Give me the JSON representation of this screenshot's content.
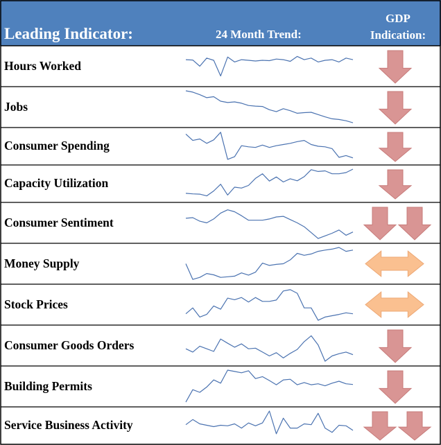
{
  "header": {
    "title": "Leading Indicator:",
    "trend": "24 Month Trend:",
    "gdp_line1": "GDP",
    "gdp_line2": "Indication:",
    "background": "#4f81bd"
  },
  "colors": {
    "sparkline": "#4a72b0",
    "arrow_down_fill": "#d99594",
    "arrow_down_stroke": "#c77b7a",
    "arrow_neutral_fill": "#fac090",
    "arrow_neutral_stroke": "#eda875"
  },
  "chart_data": {
    "type": "table",
    "title": "Leading Indicator / 24 Month Trend / GDP Indication",
    "columns": [
      "Leading Indicator:",
      "24 Month Trend:",
      "GDP Indication:"
    ],
    "rows": [
      {
        "indicator": "Hours Worked",
        "signal": "down",
        "arrows": 1,
        "trend": [
          70,
          69,
          50,
          75,
          68,
          20,
          78,
          63,
          70,
          68,
          66,
          68,
          67,
          72,
          70,
          65,
          80,
          70,
          75,
          63,
          68,
          70,
          63,
          75,
          70
        ]
      },
      {
        "indicator": "Jobs",
        "signal": "down",
        "arrows": 1,
        "trend": [
          100,
          96,
          88,
          79,
          82,
          68,
          64,
          66,
          62,
          55,
          53,
          52,
          42,
          36,
          45,
          39,
          31,
          33,
          34,
          27,
          20,
          14,
          12,
          8,
          2
        ]
      },
      {
        "indicator": "Consumer Spending",
        "signal": "down",
        "arrows": 1,
        "trend": [
          92,
          70,
          75,
          60,
          72,
          98,
          5,
          14,
          52,
          48,
          46,
          54,
          46,
          52,
          56,
          60,
          66,
          70,
          56,
          50,
          48,
          42,
          12,
          18,
          10
        ]
      },
      {
        "indicator": "Capacity Utilization",
        "signal": "down",
        "arrows": 1,
        "trend": [
          17,
          15,
          14,
          8,
          25,
          48,
          11,
          38,
          35,
          44,
          68,
          84,
          59,
          73,
          56,
          67,
          60,
          74,
          98,
          92,
          94,
          84,
          84,
          88,
          100
        ]
      },
      {
        "indicator": "Consumer Sentiment",
        "signal": "down",
        "arrows": 2,
        "trend": [
          64,
          66,
          55,
          50,
          62,
          80,
          90,
          84,
          72,
          58,
          58,
          58,
          62,
          68,
          70,
          60,
          50,
          38,
          20,
          2,
          10,
          18,
          28,
          12,
          22
        ]
      },
      {
        "indicator": "Money Supply",
        "signal": "neutral",
        "arrows": 1,
        "trend": [
          50,
          2,
          8,
          20,
          16,
          8,
          10,
          12,
          22,
          15,
          24,
          52,
          45,
          48,
          50,
          62,
          82,
          76,
          80,
          88,
          92,
          95,
          100,
          88,
          92
        ]
      },
      {
        "indicator": "Stock Prices",
        "signal": "neutral",
        "arrows": 1,
        "trend": [
          22,
          40,
          12,
          20,
          46,
          36,
          70,
          65,
          72,
          58,
          72,
          60,
          60,
          64,
          92,
          96,
          85,
          40,
          40,
          2,
          12,
          16,
          20,
          25,
          22
        ]
      },
      {
        "indicator": "Consumer Goods Orders",
        "signal": "down",
        "arrows": 1,
        "trend": [
          40,
          30,
          48,
          40,
          32,
          70,
          57,
          45,
          55,
          40,
          42,
          30,
          18,
          28,
          12,
          26,
          38,
          62,
          80,
          52,
          2,
          18,
          25,
          30,
          22
        ]
      },
      {
        "indicator": "Building Permits",
        "signal": "down",
        "arrows": 1,
        "trend": [
          2,
          40,
          32,
          48,
          70,
          60,
          100,
          96,
          92,
          98,
          74,
          80,
          68,
          55,
          70,
          72,
          55,
          62,
          55,
          58,
          52,
          60,
          66,
          58,
          56
        ]
      },
      {
        "indicator": "Service Business Activity",
        "signal": "down",
        "arrows": 2,
        "trend": [
          52,
          70,
          55,
          50,
          45,
          50,
          48,
          55,
          40,
          58,
          48,
          58,
          100,
          20,
          75,
          40,
          40,
          55,
          52,
          92,
          40,
          25,
          50,
          48,
          32
        ]
      }
    ]
  }
}
